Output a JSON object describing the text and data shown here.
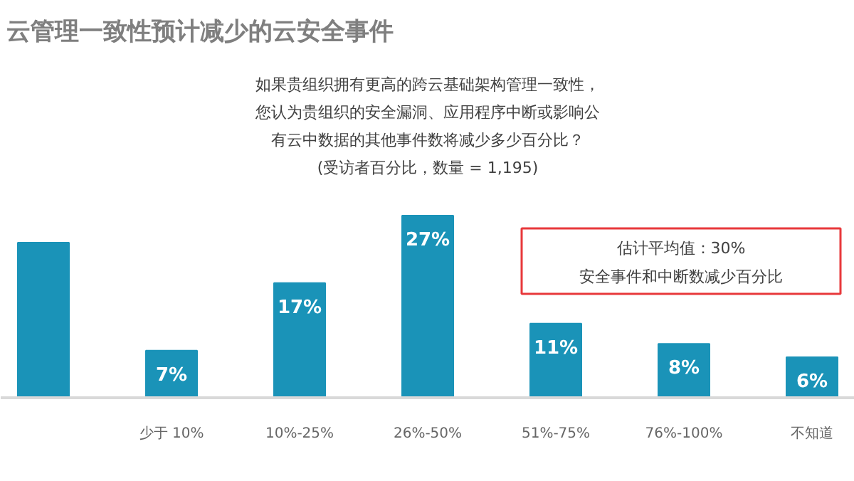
{
  "chart_data": {
    "type": "bar",
    "title": "云管理一致性预计减少的云安全事件",
    "subtitle": "如果贵组织拥有更高的跨云基础架构管理一致性，您认为贵组织的安全漏洞、应用程序中断或影响公有云中数据的其他事件数将减少多少百分比？",
    "categories": [
      null,
      "少于 10%",
      "10%-25%",
      "26%-50%",
      "51%-75%",
      "76%-100%",
      "不知道"
    ],
    "values": [
      23,
      7,
      17,
      27,
      11,
      8,
      6
    ],
    "value_labels": [
      null,
      "7%",
      "17%",
      "27%",
      "11%",
      "8%",
      "6%"
    ],
    "color": "#1a93b8",
    "annotations": [
      "(受访者百分比，数量 = 1,195)",
      "估计平均值：30%",
      "安全事件和中断数减少百分比"
    ],
    "grid": false
  }
}
